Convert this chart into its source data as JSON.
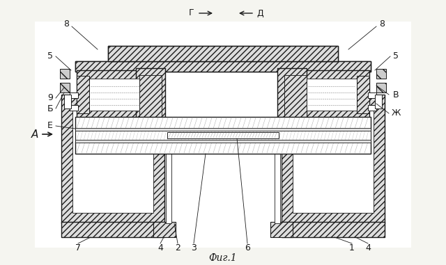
{
  "title": "Фиг.1",
  "bg_color": "#f5f5f0",
  "line_color": "#1a1a1a",
  "figsize": [
    6.4,
    3.81
  ],
  "dpi": 100,
  "labels": {
    "8_tl": "8",
    "8_tr": "8",
    "5_l": "5",
    "5_r": "5",
    "A": "А",
    "E": "Е",
    "9": "9",
    "B_cyr": "Б",
    "7": "7",
    "4_l": "4",
    "2": "2",
    "3": "3",
    "6": "6",
    "1": "1",
    "4_r": "4",
    "Zh": "Ж",
    "V": "В",
    "G": "Г",
    "D": "Д"
  }
}
